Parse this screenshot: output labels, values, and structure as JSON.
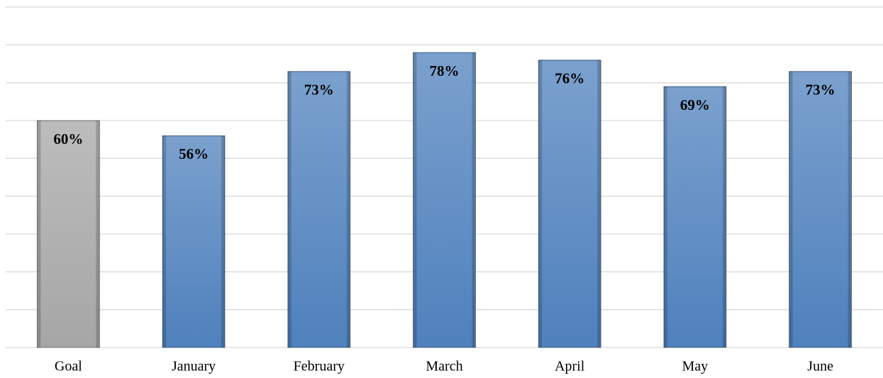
{
  "chart_data": {
    "type": "bar",
    "categories": [
      "Goal",
      "January",
      "February",
      "March",
      "April",
      "May",
      "June"
    ],
    "values": [
      60,
      56,
      73,
      78,
      76,
      69,
      73
    ],
    "value_labels": [
      "60%",
      "56%",
      "73%",
      "78%",
      "76%",
      "69%",
      "73%"
    ],
    "colors": [
      "#a6a6a6",
      "#4f81bd",
      "#4f81bd",
      "#4f81bd",
      "#4f81bd",
      "#4f81bd",
      "#4f81bd"
    ],
    "ylim": [
      0,
      90
    ],
    "yticks": [
      0,
      10,
      20,
      30,
      40,
      50,
      60,
      70,
      80,
      90
    ],
    "ytick_labels": false,
    "grid": true
  }
}
